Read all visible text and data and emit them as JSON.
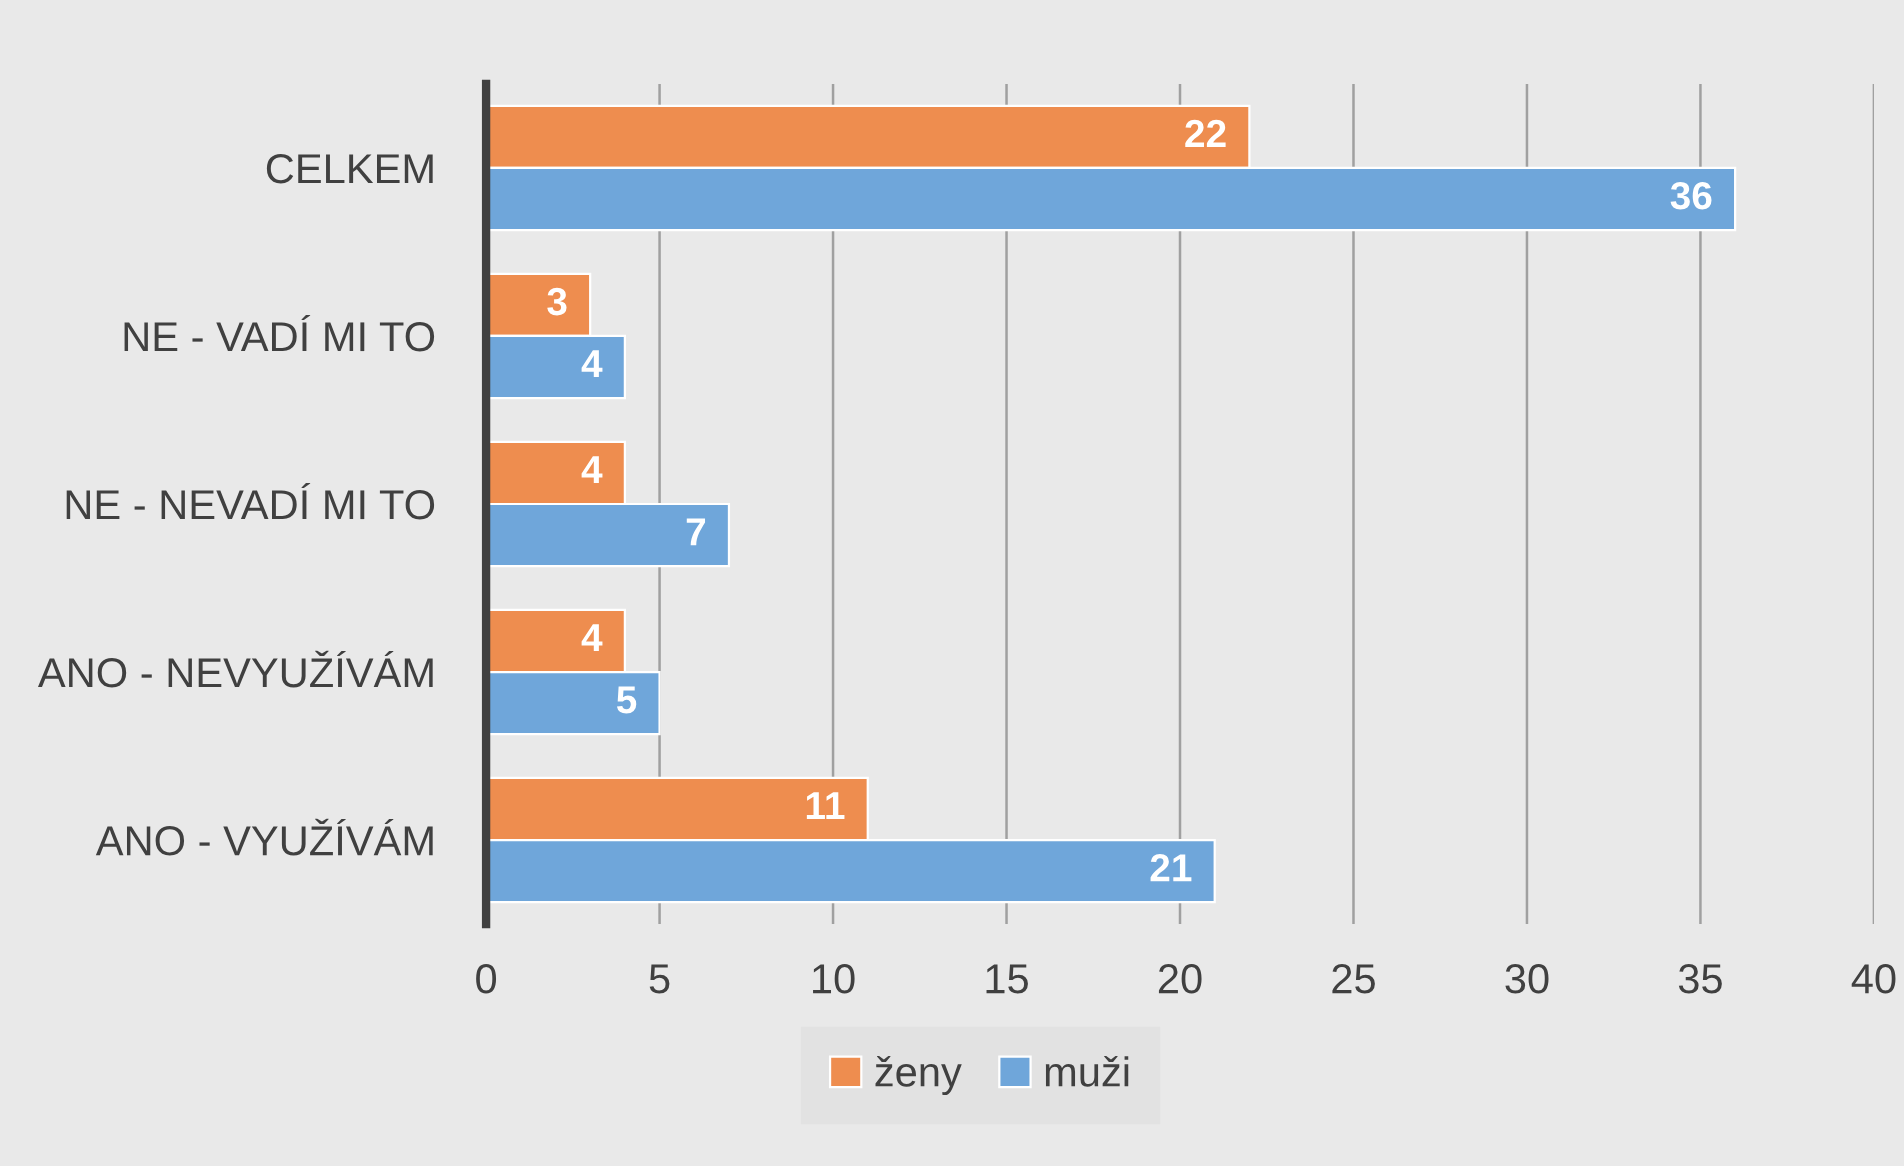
{
  "chart_data": {
    "type": "bar",
    "orientation": "horizontal",
    "categories": [
      "CELKEM",
      "NE - VADÍ MI TO",
      "NE - NEVADÍ MI TO",
      "ANO - NEVYUŽÍVÁM",
      "ANO - VYUŽÍVÁM"
    ],
    "series": [
      {
        "name": "ženy",
        "color": "#ee8d4f",
        "values": [
          22,
          3,
          4,
          4,
          11
        ]
      },
      {
        "name": "muži",
        "color": "#6fa6da",
        "values": [
          36,
          4,
          7,
          5,
          21
        ]
      }
    ],
    "xlim": [
      0,
      40
    ],
    "xticks": [
      0,
      5,
      10,
      15,
      20,
      25,
      30,
      35,
      40
    ],
    "grid": "x",
    "legend": "bottom",
    "data_labels": true
  }
}
